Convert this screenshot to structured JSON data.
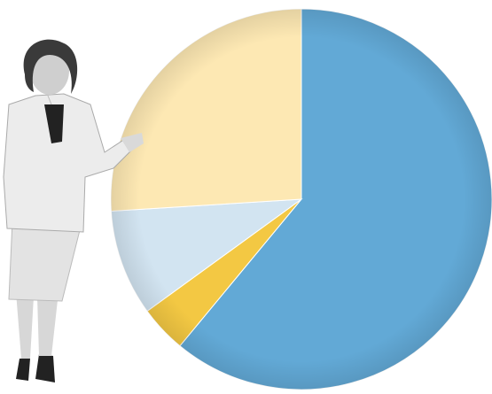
{
  "chart_data": {
    "type": "pie",
    "values": [
      61,
      4,
      9,
      26
    ],
    "colors": [
      "#62a9d6",
      "#f3c843",
      "#d2e4f1",
      "#fde8b3"
    ],
    "start_angle": 0,
    "direction": "clockwise"
  }
}
